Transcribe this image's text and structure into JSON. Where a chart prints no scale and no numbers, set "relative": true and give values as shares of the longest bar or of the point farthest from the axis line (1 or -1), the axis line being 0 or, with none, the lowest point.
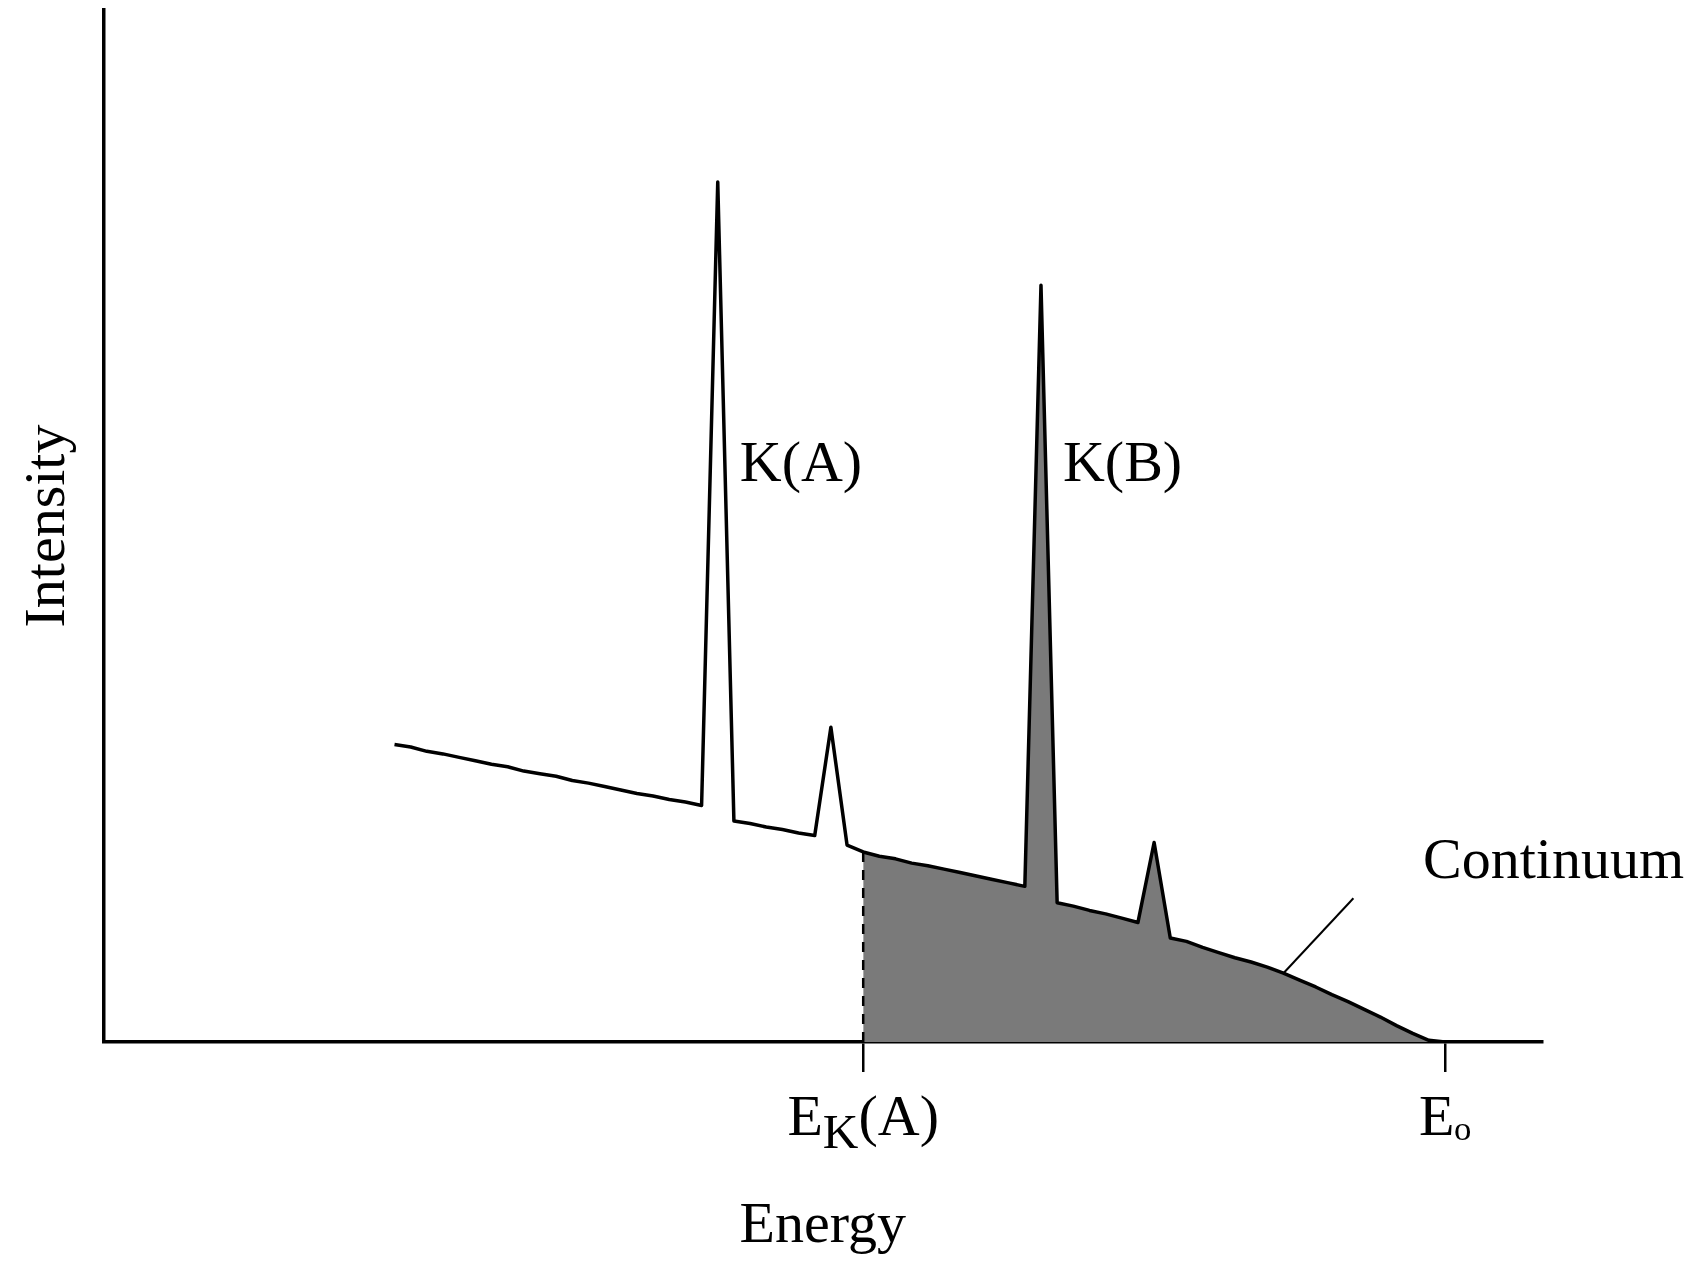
{
  "chart_data": {
    "type": "line",
    "relative": true,
    "xlabel": "Energy",
    "ylabel": "Intensity",
    "categories": [
      null,
      null,
      null,
      null,
      null,
      null,
      null,
      null,
      null,
      null,
      null,
      null,
      null,
      null,
      null,
      null,
      null,
      null,
      null,
      null,
      null,
      null,
      null,
      null,
      null,
      null,
      null,
      null,
      null,
      null,
      null,
      null,
      null,
      null,
      null,
      null,
      null,
      null,
      null,
      null,
      null,
      null,
      null,
      null,
      null,
      null,
      null,
      "E$_{K}$(A)",
      null,
      null,
      null,
      null,
      null,
      null,
      null,
      null,
      null,
      null,
      null,
      null,
      null,
      null,
      null,
      null,
      null,
      null,
      null,
      null,
      null,
      null,
      null,
      null,
      null,
      null,
      null,
      null,
      null,
      null,
      null,
      null,
      null,
      null,
      null,
      "Eₒ",
      null,
      null,
      null,
      null,
      null,
      null
    ],
    "series": [
      {
        "type": "area",
        "color": "#7a7a7a",
        "values": [
          null,
          null,
          null,
          null,
          null,
          null,
          null,
          null,
          null,
          null,
          null,
          null,
          null,
          null,
          null,
          null,
          null,
          null,
          null,
          null,
          null,
          null,
          null,
          null,
          null,
          null,
          null,
          null,
          null,
          null,
          null,
          null,
          null,
          null,
          null,
          null,
          null,
          null,
          null,
          null,
          null,
          null,
          null,
          null,
          null,
          null,
          null,
          0.221,
          0.216,
          0.213,
          0.208,
          0.205,
          0.201,
          0.197,
          0.193,
          0.189,
          0.185,
          0.181,
          0.88,
          0.162,
          0.158,
          0.153,
          0.149,
          0.144,
          0.139,
          0.232,
          0.121,
          0.117,
          0.11,
          0.104,
          0.098,
          0.093,
          0.087,
          0.08,
          0.072,
          0.064,
          0.055,
          0.047,
          0.038,
          0.029,
          0.019,
          0.01,
          0.002,
          0,
          null,
          null,
          null,
          null,
          null,
          null
        ]
      },
      {
        "type": "line",
        "color": "#000000",
        "values": [
          null,
          null,
          null,
          null,
          null,
          null,
          null,
          null,
          null,
          null,
          null,
          null,
          null,
          null,
          null,
          null,
          null,
          null,
          0.346,
          0.343,
          0.338,
          0.335,
          0.331,
          0.327,
          0.323,
          0.32,
          0.315,
          0.312,
          0.309,
          0.304,
          0.301,
          0.297,
          0.293,
          0.289,
          0.286,
          0.282,
          0.279,
          0.275,
          1,
          0.257,
          0.254,
          0.25,
          0.247,
          0.243,
          0.24,
          0.366,
          0.229,
          0.221,
          0.216,
          0.213,
          0.208,
          0.205,
          0.201,
          0.197,
          0.193,
          0.189,
          0.185,
          0.181,
          0.88,
          0.162,
          0.158,
          0.153,
          0.149,
          0.144,
          0.139,
          0.232,
          0.121,
          0.117,
          0.11,
          0.104,
          0.098,
          0.093,
          0.087,
          0.08,
          0.072,
          0.064,
          0.055,
          0.047,
          0.038,
          0.029,
          0.019,
          0.01,
          0.002,
          0,
          null,
          null,
          null,
          null,
          null,
          null
        ]
      }
    ],
    "ref_lines": [
      {
        "axis": "x",
        "value": "E$_{K}$(A)",
        "line_style": "dashed",
        "color": "#000000"
      }
    ],
    "annotations": [
      "K(A)",
      "K(B)",
      "Continuum"
    ],
    "legend": false,
    "grid": false,
    "marker": "none",
    "line_style": "solid"
  }
}
